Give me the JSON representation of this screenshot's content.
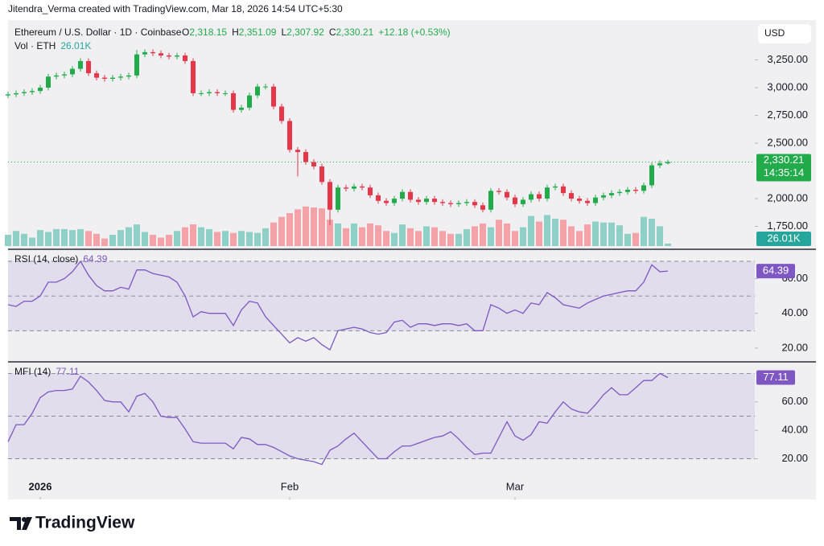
{
  "header": {
    "attribution": "Jitendra_Verma created with TradingView.com, Mar 18, 2026 14:54 UTC+5:30",
    "currency_button": "USD"
  },
  "footer": {
    "brand": "TradingView"
  },
  "chart_data": [
    {
      "type": "candlestick",
      "title": "Ethereum / U.S. Dollar · 1D · Coinbase",
      "ohlc_labels": [
        {
          "key": "O",
          "label": "2,318.15"
        },
        {
          "key": "H",
          "label": "2,351.09"
        },
        {
          "key": "L",
          "label": "2,307.92"
        },
        {
          "key": "C",
          "label": "2,330.21"
        }
      ],
      "change_label": "+12.18 (+0.53%)",
      "last_close_label": "2,330.21",
      "countdown": "14:35:14",
      "up_color": "#22ab4a",
      "down_color": "#e5364a",
      "open": [
        2930,
        2940,
        2950,
        2960,
        2970,
        3000,
        3100,
        3110,
        3120,
        3170,
        3240,
        3130,
        3090,
        3080,
        3090,
        3100,
        3110,
        3300,
        3320,
        3310,
        3290,
        3280,
        3290,
        3240,
        2950,
        2950,
        2960,
        2950,
        2950,
        2800,
        2820,
        2930,
        3010,
        3010,
        2830,
        2700,
        2440,
        2420,
        2330,
        2290,
        2150,
        1900,
        2100,
        2090,
        2110,
        2100,
        2030,
        1980,
        1960,
        2000,
        2060,
        1990,
        1970,
        2000,
        1970,
        1960,
        1950,
        1960,
        1970,
        1940,
        1900,
        2070,
        2060,
        2010,
        1950,
        1990,
        2040,
        2000,
        2100,
        2110,
        2050,
        2000,
        1980,
        1960,
        2010,
        2030,
        2050,
        2060,
        2080,
        2070,
        2120,
        2300,
        2318.15
      ],
      "high": [
        2965,
        2975,
        2985,
        2995,
        3025,
        3125,
        3135,
        3145,
        3195,
        3265,
        3265,
        3155,
        3115,
        3115,
        3125,
        3135,
        3340,
        3345,
        3345,
        3335,
        3315,
        3315,
        3315,
        3265,
        2975,
        2985,
        2985,
        2975,
        2975,
        2845,
        2955,
        3035,
        3035,
        3035,
        2855,
        2725,
        2465,
        2445,
        2355,
        2315,
        2175,
        2125,
        2125,
        2135,
        2135,
        2125,
        2055,
        2005,
        2025,
        2085,
        2085,
        2015,
        2025,
        2025,
        1995,
        1985,
        1985,
        1995,
        1995,
        1965,
        2095,
        2095,
        2085,
        2035,
        2015,
        2065,
        2065,
        2125,
        2135,
        2135,
        2075,
        2025,
        2005,
        2035,
        2055,
        2075,
        2085,
        2105,
        2105,
        2145,
        2325,
        2345,
        2351.09
      ],
      "low": [
        2905,
        2915,
        2925,
        2935,
        2945,
        2975,
        3075,
        3085,
        3095,
        3145,
        3105,
        3065,
        3055,
        3055,
        3065,
        3075,
        3085,
        3275,
        3285,
        3265,
        3255,
        3255,
        3215,
        2925,
        2925,
        2925,
        2925,
        2925,
        2775,
        2775,
        2795,
        2905,
        2985,
        2805,
        2675,
        2415,
        2200,
        2305,
        2265,
        2125,
        1760,
        1875,
        2065,
        2065,
        2075,
        2005,
        1955,
        1935,
        1935,
        1975,
        1965,
        1945,
        1945,
        1945,
        1935,
        1925,
        1925,
        1935,
        1915,
        1875,
        1875,
        2035,
        1985,
        1925,
        1925,
        1965,
        1975,
        1975,
        2075,
        2025,
        1975,
        1955,
        1935,
        1935,
        1985,
        2005,
        2025,
        2035,
        2045,
        2045,
        2095,
        2275,
        2307.92
      ],
      "close": [
        2940,
        2950,
        2960,
        2970,
        3000,
        3100,
        3110,
        3120,
        3170,
        3240,
        3130,
        3090,
        3080,
        3090,
        3100,
        3110,
        3300,
        3320,
        3310,
        3290,
        3280,
        3290,
        3240,
        2950,
        2950,
        2960,
        2950,
        2950,
        2800,
        2820,
        2930,
        3010,
        3010,
        2830,
        2700,
        2440,
        2420,
        2330,
        2290,
        2150,
        1900,
        2100,
        2090,
        2110,
        2100,
        2030,
        1980,
        1960,
        2000,
        2060,
        1990,
        1970,
        2000,
        1970,
        1960,
        1950,
        1960,
        1970,
        1940,
        1900,
        2070,
        2060,
        2010,
        1950,
        1990,
        2040,
        2000,
        2100,
        2110,
        2050,
        2000,
        1980,
        1960,
        2010,
        2030,
        2050,
        2060,
        2080,
        2070,
        2120,
        2300,
        2318.15,
        2330.21
      ],
      "volume": {
        "name": "Vol · ETH",
        "last_label": "26.01K",
        "ylim": [
          0,
          2400
        ],
        "up_color": "#8fd0c6",
        "down_color": "#f3a2a8",
        "values": [
          120,
          160,
          130,
          90,
          170,
          150,
          180,
          180,
          170,
          180,
          160,
          130,
          80,
          120,
          170,
          200,
          230,
          150,
          120,
          90,
          120,
          160,
          200,
          230,
          200,
          180,
          150,
          160,
          140,
          160,
          150,
          140,
          190,
          250,
          310,
          350,
          390,
          420,
          410,
          400,
          280,
          240,
          190,
          240,
          200,
          240,
          220,
          160,
          140,
          230,
          190,
          160,
          210,
          200,
          160,
          130,
          130,
          180,
          210,
          240,
          200,
          280,
          240,
          160,
          200,
          320,
          260,
          330,
          290,
          280,
          210,
          160,
          230,
          260,
          250,
          250,
          220,
          130,
          140,
          310,
          290,
          210,
          26.01
        ]
      },
      "xlim": [
        0,
        92.8
      ],
      "xticks": [
        {
          "value": 4,
          "label": "2026"
        },
        {
          "value": 35,
          "label": "Feb"
        },
        {
          "value": 63,
          "label": "Mar"
        }
      ],
      "ylim": [
        1558,
        3609
      ],
      "yticks": [
        {
          "value": 1750,
          "label": "1,750.00"
        },
        {
          "value": 2000,
          "label": "2,000.00"
        },
        {
          "value": 2500,
          "label": "2,500.00"
        },
        {
          "value": 2750,
          "label": "2,750.00"
        },
        {
          "value": 3000,
          "label": "3,000.00"
        },
        {
          "value": 3250,
          "label": "3,250.00"
        }
      ]
    },
    {
      "type": "line",
      "title": "RSI (14, close)",
      "color": "#7e57c2",
      "values": [
        45,
        44,
        47,
        47,
        50,
        58,
        58,
        60,
        64,
        70,
        62,
        56,
        53,
        53,
        55,
        54,
        65,
        65,
        63,
        62,
        61,
        58,
        50,
        38,
        41,
        40,
        40,
        40,
        33,
        42,
        47,
        46,
        38,
        33,
        28,
        23,
        26,
        24,
        26,
        22,
        19,
        30,
        31,
        32,
        31,
        29,
        28,
        29,
        35,
        36,
        32,
        34,
        34,
        33,
        34,
        34,
        33,
        34,
        30,
        30,
        45,
        43,
        40,
        42,
        40,
        46,
        45,
        52,
        49,
        45,
        44,
        43,
        46,
        48,
        50,
        51,
        52,
        53,
        53,
        58,
        68,
        64,
        64.39
      ],
      "levels": [
        30,
        50,
        70
      ],
      "ylim": [
        13,
        76
      ],
      "yticks": [
        {
          "value": 20,
          "label": "20.00"
        },
        {
          "value": 40,
          "label": "40.00"
        },
        {
          "value": 60,
          "label": "60.00"
        }
      ]
    },
    {
      "type": "line",
      "title": "MFI (14)",
      "color": "#7e57c2",
      "values": [
        32,
        44,
        44,
        52,
        63,
        67,
        68,
        68,
        69,
        78,
        74,
        68,
        61,
        60,
        60,
        53,
        64,
        66,
        60,
        50,
        49,
        49,
        41,
        32,
        31,
        31,
        31,
        31,
        27,
        35,
        34,
        30,
        30,
        28,
        25,
        22,
        20,
        19,
        18,
        16,
        26,
        29,
        34,
        38,
        32,
        26,
        20,
        20,
        25,
        29,
        29,
        31,
        33,
        35,
        36,
        39,
        34,
        28,
        23,
        24,
        24,
        35,
        46,
        36,
        33,
        37,
        46,
        45,
        53,
        60,
        55,
        53,
        52,
        58,
        65,
        70,
        65,
        65,
        70,
        75,
        75,
        80,
        77.11
      ],
      "levels": [
        20,
        50,
        80
      ],
      "ylim": [
        9,
        87
      ],
      "yticks": [
        {
          "value": 20,
          "label": "20.00"
        },
        {
          "value": 40,
          "label": "40.00"
        },
        {
          "value": 60,
          "label": "60.00"
        }
      ]
    }
  ]
}
